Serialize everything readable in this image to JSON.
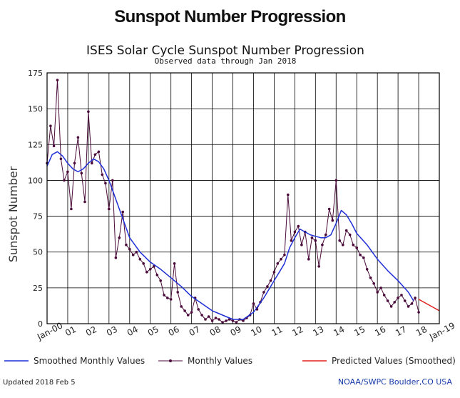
{
  "page": {
    "heading": "Sunspot Number Progression"
  },
  "footer": {
    "updated": "Updated 2018 Feb  5",
    "credit": "NOAA/SWPC Boulder,CO USA"
  },
  "colors": {
    "smoothed": "#1f2fd6",
    "monthly": "#4a0a3a",
    "predicted": "#e0201c",
    "grid": "#000000"
  },
  "chart_data": {
    "type": "line",
    "title": "ISES Solar Cycle Sunspot Number Progression",
    "subtitle": "Observed data through Jan 2018",
    "ylabel": "Sunspot Number",
    "xlabel": "",
    "xlim": [
      2000.0,
      2019.0
    ],
    "ylim": [
      0,
      175
    ],
    "yticks": [
      0,
      25,
      50,
      75,
      100,
      125,
      150,
      175
    ],
    "xtick_labels": [
      "Jan-00",
      "01",
      "02",
      "03",
      "04",
      "05",
      "06",
      "07",
      "08",
      "09",
      "10",
      "11",
      "12",
      "13",
      "14",
      "15",
      "16",
      "17",
      "18",
      "Jan-19"
    ],
    "grid": true,
    "legend": {
      "placement": "bottom",
      "smoothed_label": "Smoothed Monthly Values",
      "monthly_label": "Monthly Values",
      "predicted_label": "Predicted Values (Smoothed)"
    },
    "series": [
      {
        "name": "Monthly Values",
        "x": [
          2000.0,
          2000.17,
          2000.33,
          2000.5,
          2000.67,
          2000.83,
          2001.0,
          2001.17,
          2001.33,
          2001.5,
          2001.67,
          2001.83,
          2002.0,
          2002.17,
          2002.33,
          2002.5,
          2002.67,
          2002.83,
          2003.0,
          2003.17,
          2003.33,
          2003.5,
          2003.67,
          2003.83,
          2004.0,
          2004.17,
          2004.33,
          2004.5,
          2004.67,
          2004.83,
          2005.0,
          2005.17,
          2005.33,
          2005.5,
          2005.67,
          2005.83,
          2006.0,
          2006.17,
          2006.33,
          2006.5,
          2006.67,
          2006.83,
          2007.0,
          2007.17,
          2007.33,
          2007.5,
          2007.67,
          2007.83,
          2008.0,
          2008.17,
          2008.33,
          2008.5,
          2008.67,
          2008.83,
          2009.0,
          2009.17,
          2009.33,
          2009.5,
          2009.67,
          2009.83,
          2010.0,
          2010.17,
          2010.33,
          2010.5,
          2010.67,
          2010.83,
          2011.0,
          2011.17,
          2011.33,
          2011.5,
          2011.67,
          2011.83,
          2012.0,
          2012.17,
          2012.33,
          2012.5,
          2012.67,
          2012.83,
          2013.0,
          2013.17,
          2013.33,
          2013.5,
          2013.67,
          2013.83,
          2014.0,
          2014.17,
          2014.33,
          2014.5,
          2014.67,
          2014.83,
          2015.0,
          2015.17,
          2015.33,
          2015.5,
          2015.67,
          2015.83,
          2016.0,
          2016.17,
          2016.33,
          2016.5,
          2016.67,
          2016.83,
          2017.0,
          2017.17,
          2017.33,
          2017.5,
          2017.67,
          2017.83,
          2018.0
        ],
        "values": [
          112,
          138,
          124,
          170,
          115,
          100,
          106,
          80,
          112,
          130,
          105,
          85,
          148,
          112,
          118,
          120,
          104,
          98,
          80,
          100,
          46,
          60,
          78,
          55,
          52,
          48,
          50,
          45,
          42,
          36,
          38,
          40,
          34,
          30,
          20,
          18,
          17,
          42,
          22,
          12,
          9,
          6,
          8,
          18,
          10,
          6,
          3,
          5,
          2,
          4,
          3,
          1,
          2,
          3,
          2,
          1,
          3,
          2,
          4,
          6,
          14,
          10,
          15,
          22,
          26,
          30,
          36,
          42,
          45,
          48,
          90,
          58,
          64,
          68,
          55,
          64,
          45,
          60,
          58,
          40,
          55,
          62,
          80,
          72,
          100,
          58,
          55,
          65,
          62,
          55,
          53,
          48,
          46,
          38,
          32,
          28,
          22,
          25,
          20,
          16,
          12,
          15,
          18,
          20,
          16,
          12,
          14,
          18,
          8
        ]
      },
      {
        "name": "Smoothed Monthly Values",
        "x": [
          2000.0,
          2000.25,
          2000.5,
          2000.75,
          2001.0,
          2001.25,
          2001.5,
          2001.75,
          2002.0,
          2002.25,
          2002.5,
          2002.75,
          2003.0,
          2003.25,
          2003.5,
          2003.75,
          2004.0,
          2004.5,
          2005.0,
          2005.5,
          2006.0,
          2006.5,
          2007.0,
          2007.5,
          2008.0,
          2008.5,
          2009.0,
          2009.5,
          2010.0,
          2010.5,
          2011.0,
          2011.5,
          2011.75,
          2012.0,
          2012.25,
          2012.5,
          2012.75,
          2013.0,
          2013.25,
          2013.5,
          2013.75,
          2014.0,
          2014.25,
          2014.5,
          2014.75,
          2015.0,
          2015.5,
          2016.0,
          2016.5,
          2017.0,
          2017.5,
          2017.75
        ],
        "values": [
          110,
          118,
          120,
          117,
          112,
          108,
          106,
          108,
          112,
          115,
          113,
          108,
          100,
          90,
          80,
          70,
          60,
          50,
          43,
          38,
          32,
          26,
          19,
          14,
          9,
          6,
          3,
          3,
          8,
          18,
          30,
          42,
          53,
          60,
          66,
          64,
          62,
          61,
          60,
          60,
          62,
          70,
          79,
          76,
          70,
          63,
          55,
          45,
          37,
          30,
          22,
          16
        ]
      },
      {
        "name": "Predicted Values (Smoothed)",
        "x": [
          2018.0,
          2018.25,
          2018.5,
          2018.75,
          2019.0
        ],
        "values": [
          17,
          15,
          13,
          11,
          9
        ]
      }
    ]
  }
}
